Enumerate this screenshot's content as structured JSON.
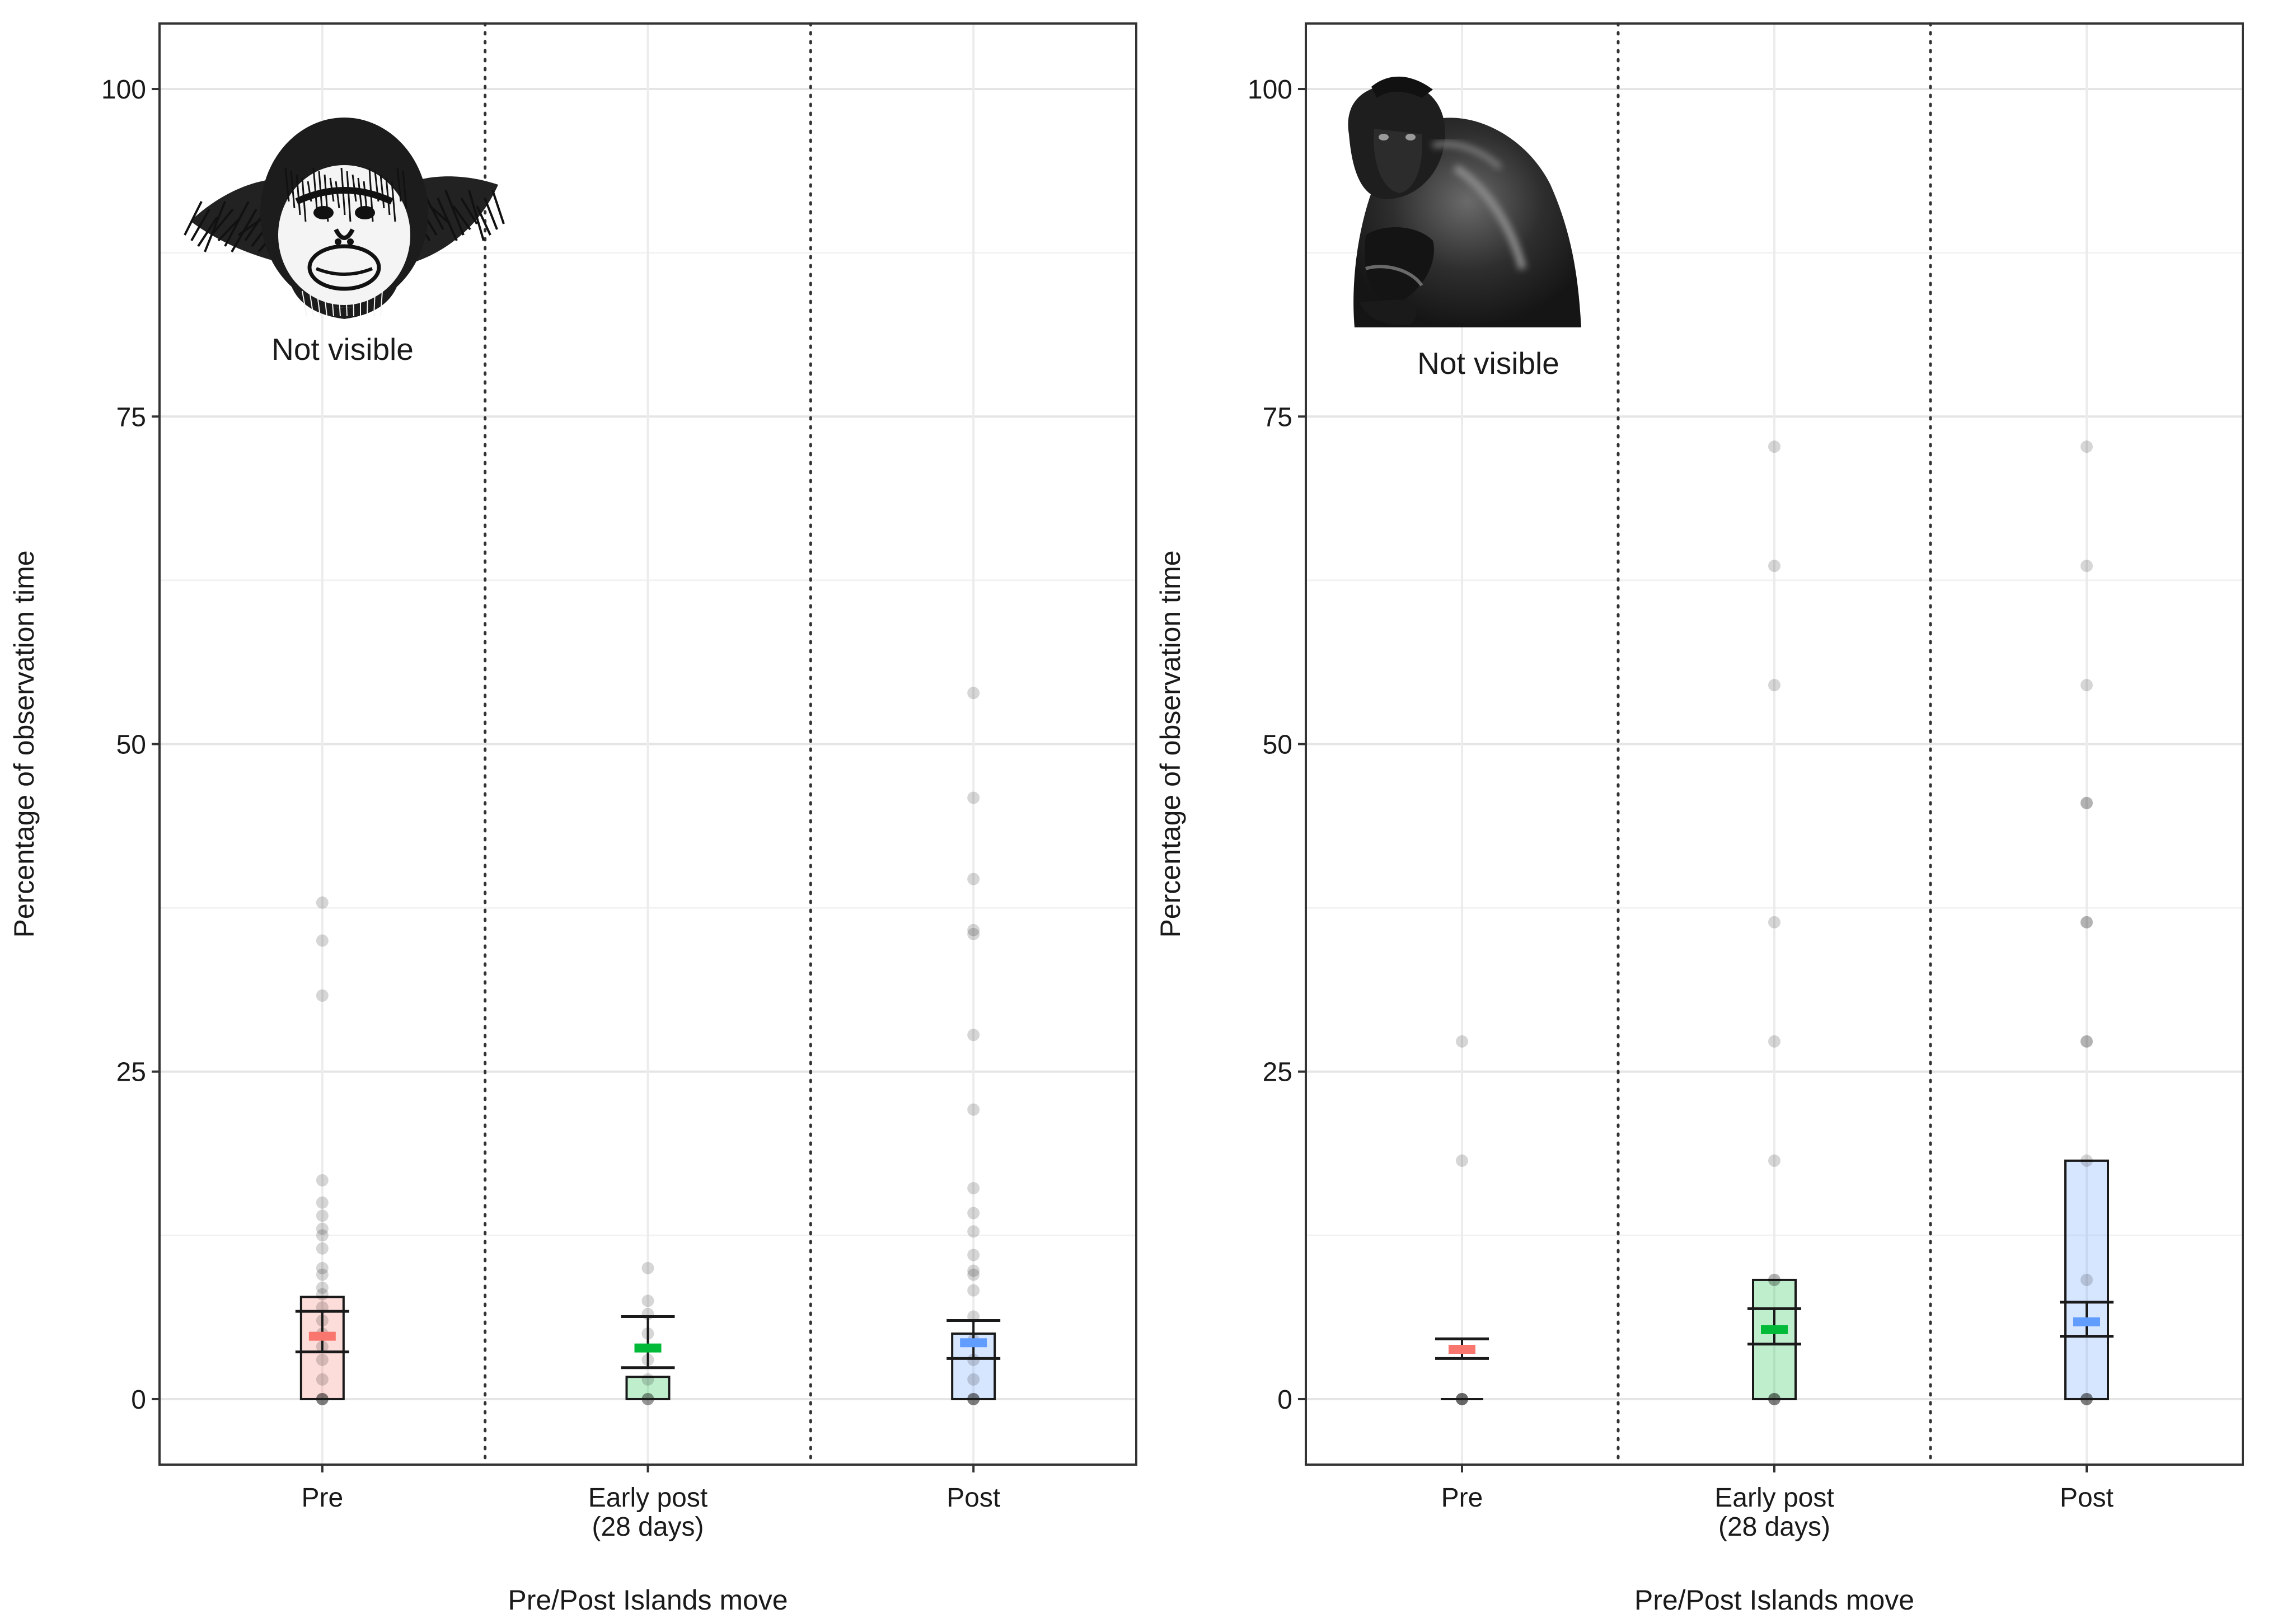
{
  "chart_data": [
    {
      "type": "box",
      "title": "",
      "xlabel": "Pre/Post Islands move",
      "ylabel": "Percentage of observation time",
      "ylim": [
        -5,
        105
      ],
      "yticks": [
        0,
        25,
        50,
        75,
        100
      ],
      "grid": true,
      "legend": "none",
      "annotation": "Not visible",
      "annotation_image": "orangutan-drawing",
      "categories": [
        "Pre",
        "Early post\n(28 days)",
        "Post"
      ],
      "colors": [
        "#f8766d",
        "#00ba38",
        "#619cff"
      ],
      "series": [
        {
          "box": {
            "q1": 0,
            "median": 0,
            "q3": 7.8
          },
          "mean": 4.8,
          "ci": [
            3.6,
            6.7
          ],
          "points": [
            0,
            0,
            0,
            0,
            1.5,
            3.0,
            4.0,
            5.0,
            6.0,
            7.0,
            8.0,
            8.5,
            9.5,
            10.0,
            11.5,
            12.5,
            13.0,
            14.0,
            15.0,
            16.7,
            30.8,
            35.0,
            37.9
          ]
        },
        {
          "box": {
            "q1": 0,
            "median": 0,
            "q3": 1.7
          },
          "mean": 3.9,
          "ci": [
            2.4,
            6.3
          ],
          "points": [
            0,
            0,
            0,
            1.5,
            3.0,
            5.0,
            6.5,
            7.5,
            10.0
          ]
        },
        {
          "box": {
            "q1": 0,
            "median": 0,
            "q3": 5.0
          },
          "mean": 4.3,
          "ci": [
            3.1,
            6.0
          ],
          "points": [
            0,
            0,
            0,
            0,
            1.5,
            3.0,
            4.5,
            6.3,
            8.3,
            9.5,
            9.8,
            11.0,
            12.8,
            14.2,
            16.1,
            22.1,
            27.8,
            35.5,
            35.8,
            39.7,
            45.9,
            53.9
          ]
        }
      ]
    },
    {
      "type": "box",
      "title": "",
      "xlabel": "Pre/Post Islands move",
      "ylabel": "Percentage of observation time",
      "ylim": [
        -5,
        105
      ],
      "yticks": [
        0,
        25,
        50,
        75,
        100
      ],
      "grid": true,
      "legend": "none",
      "annotation": "Not visible",
      "annotation_image": "macaque-photo",
      "categories": [
        "Pre",
        "Early post\n(28 days)",
        "Post"
      ],
      "colors": [
        "#f8766d",
        "#00ba38",
        "#619cff"
      ],
      "series": [
        {
          "box": {
            "q1": 0,
            "median": 0,
            "q3": 0
          },
          "mean": 3.8,
          "ci": [
            3.1,
            4.6
          ],
          "points": [
            0,
            0,
            0,
            0,
            0,
            18.2,
            27.3
          ]
        },
        {
          "box": {
            "q1": 0,
            "median": 0,
            "q3": 9.1
          },
          "mean": 5.3,
          "ci": [
            4.2,
            6.9
          ],
          "points": [
            0,
            0,
            0,
            0,
            9.1,
            9.1,
            18.2,
            27.3,
            36.4,
            54.5,
            63.6,
            72.7
          ]
        },
        {
          "box": {
            "q1": 0,
            "median": 0,
            "q3": 18.2
          },
          "mean": 5.9,
          "ci": [
            4.8,
            7.4
          ],
          "points": [
            0,
            0,
            0,
            0,
            9.1,
            18.2,
            27.3,
            27.3,
            36.4,
            36.4,
            45.5,
            45.5,
            54.5,
            63.6,
            72.7
          ]
        }
      ]
    }
  ]
}
